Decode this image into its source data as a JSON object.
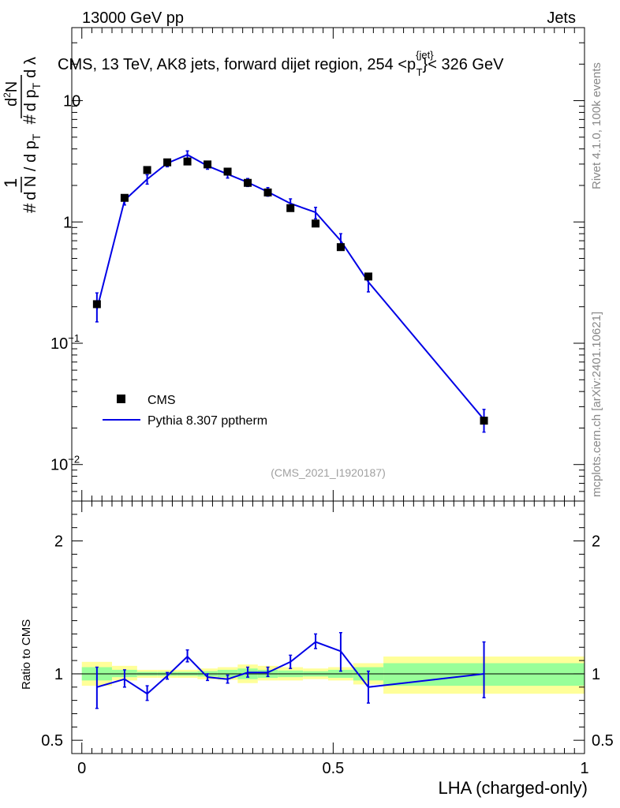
{
  "header": {
    "energy_label": "13000 GeV pp",
    "process_label": "Jets"
  },
  "sidebar": {
    "rivet_label": "Rivet 4.1.0,  100k events",
    "mcplots_label": "mcplots.cern.ch [arXiv:2401.10621]"
  },
  "chart_data": {
    "type": "line",
    "title_main": "CMS, 13 TeV, AK8 jets, forward dijet region, 254 <p",
    "title_sup": "{jet}",
    "title_sub": "T",
    "title_end": "}< 326 GeV",
    "analysis_id": "(CMS_2021_I1920187)",
    "xlabel": "LHA (charged-only)",
    "ylabel_ratio": "Ratio to CMS",
    "xlim": [
      -0.02,
      1.0
    ],
    "ylim_main": [
      0.005,
      40
    ],
    "ylim_ratio": [
      0.4,
      2.3
    ],
    "yscale_main": "log",
    "x_ticks": [
      {
        "v": 0,
        "label": "0"
      },
      {
        "v": 0.5,
        "label": "0.5"
      },
      {
        "v": 1,
        "label": "1"
      }
    ],
    "main_y_ticks": [
      {
        "v": 0.01,
        "base": "10",
        "exp": "−2"
      },
      {
        "v": 0.1,
        "base": "10",
        "exp": "−1"
      },
      {
        "v": 1,
        "base": "1",
        "exp": ""
      },
      {
        "v": 10,
        "base": "10",
        "exp": ""
      }
    ],
    "ratio_y_ticks": [
      {
        "v": 0.5,
        "label": "0.5"
      },
      {
        "v": 1,
        "label": "1"
      },
      {
        "v": 2,
        "label": "2"
      }
    ],
    "legend": [
      {
        "name": "CMS",
        "marker": "square",
        "color": "#000000"
      },
      {
        "name": "Pythia 8.307 pptherm",
        "marker": "line",
        "color": "#0000e6"
      }
    ],
    "series": [
      {
        "name": "CMS",
        "x": [
          0.03,
          0.085,
          0.13,
          0.17,
          0.21,
          0.25,
          0.29,
          0.33,
          0.37,
          0.415,
          0.465,
          0.515,
          0.57,
          0.8
        ],
        "values": [
          0.21,
          1.58,
          2.68,
          3.1,
          3.15,
          2.98,
          2.6,
          2.1,
          1.75,
          1.3,
          0.97,
          0.62,
          0.355,
          0.023
        ]
      },
      {
        "name": "Pythia 8.307 pptherm",
        "x": [
          0.03,
          0.085,
          0.13,
          0.17,
          0.21,
          0.25,
          0.29,
          0.33,
          0.37,
          0.415,
          0.465,
          0.515,
          0.57,
          0.8
        ],
        "values": [
          0.19,
          1.51,
          2.25,
          3.05,
          3.58,
          2.9,
          2.48,
          2.12,
          1.77,
          1.42,
          1.2,
          0.7,
          0.32,
          0.0235
        ],
        "err_low": [
          0.15,
          1.38,
          2.05,
          2.85,
          3.32,
          2.72,
          2.3,
          1.96,
          1.63,
          1.28,
          1.06,
          0.6,
          0.265,
          0.0185
        ],
        "err_high": [
          0.26,
          1.65,
          2.45,
          3.25,
          3.85,
          3.1,
          2.68,
          2.28,
          1.92,
          1.55,
          1.32,
          0.8,
          0.37,
          0.0285
        ]
      }
    ],
    "ratio": {
      "values": [
        0.9,
        0.96,
        0.85,
        0.985,
        1.13,
        0.975,
        0.96,
        1.01,
        1.01,
        1.09,
        1.24,
        1.17,
        0.9,
        1.0
      ],
      "err_low": [
        0.74,
        0.9,
        0.8,
        0.96,
        1.09,
        0.95,
        0.93,
        0.975,
        0.98,
        1.04,
        1.19,
        1.02,
        0.78,
        0.82
      ],
      "err_high": [
        1.05,
        1.03,
        0.91,
        1.01,
        1.18,
        1.0,
        0.99,
        1.05,
        1.05,
        1.14,
        1.3,
        1.31,
        1.02,
        1.24
      ],
      "bins": [
        {
          "lo": 0.0,
          "hi": 0.06,
          "g_lo": 0.95,
          "g_hi": 1.05,
          "y_lo": 0.91,
          "y_hi": 1.09
        },
        {
          "lo": 0.06,
          "hi": 0.11,
          "g_lo": 0.975,
          "g_hi": 1.03,
          "y_lo": 0.95,
          "y_hi": 1.06
        },
        {
          "lo": 0.11,
          "hi": 0.15,
          "g_lo": 0.985,
          "g_hi": 1.015,
          "y_lo": 0.97,
          "y_hi": 1.03
        },
        {
          "lo": 0.15,
          "hi": 0.19,
          "g_lo": 0.985,
          "g_hi": 1.015,
          "y_lo": 0.97,
          "y_hi": 1.03
        },
        {
          "lo": 0.19,
          "hi": 0.23,
          "g_lo": 0.985,
          "g_hi": 1.015,
          "y_lo": 0.97,
          "y_hi": 1.03
        },
        {
          "lo": 0.23,
          "hi": 0.27,
          "g_lo": 0.98,
          "g_hi": 1.02,
          "y_lo": 0.96,
          "y_hi": 1.04
        },
        {
          "lo": 0.27,
          "hi": 0.31,
          "g_lo": 0.975,
          "g_hi": 1.03,
          "y_lo": 0.955,
          "y_hi": 1.05
        },
        {
          "lo": 0.31,
          "hi": 0.35,
          "g_lo": 0.96,
          "g_hi": 1.04,
          "y_lo": 0.93,
          "y_hi": 1.07
        },
        {
          "lo": 0.35,
          "hi": 0.39,
          "g_lo": 0.97,
          "g_hi": 1.03,
          "y_lo": 0.95,
          "y_hi": 1.06
        },
        {
          "lo": 0.39,
          "hi": 0.44,
          "g_lo": 0.975,
          "g_hi": 1.025,
          "y_lo": 0.95,
          "y_hi": 1.05
        },
        {
          "lo": 0.44,
          "hi": 0.49,
          "g_lo": 0.98,
          "g_hi": 1.02,
          "y_lo": 0.96,
          "y_hi": 1.04
        },
        {
          "lo": 0.49,
          "hi": 0.54,
          "g_lo": 0.97,
          "g_hi": 1.03,
          "y_lo": 0.95,
          "y_hi": 1.05
        },
        {
          "lo": 0.54,
          "hi": 0.6,
          "g_lo": 0.95,
          "g_hi": 1.05,
          "y_lo": 0.92,
          "y_hi": 1.08
        },
        {
          "lo": 0.6,
          "hi": 1.0,
          "g_lo": 0.91,
          "g_hi": 1.08,
          "y_lo": 0.85,
          "y_hi": 1.13
        }
      ]
    }
  },
  "colors": {
    "mc_line": "#0000e6",
    "data_marker": "#000000",
    "band_green": "#99ff99",
    "band_yellow": "#ffff99",
    "side_text": "#888888",
    "analysis_text": "#a0a0a0"
  }
}
